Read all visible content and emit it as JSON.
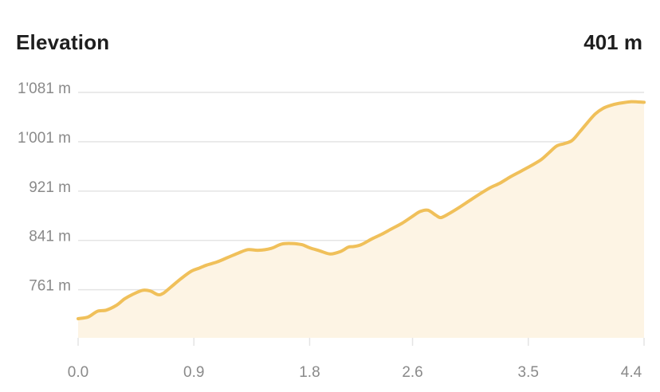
{
  "header": {
    "title": "Elevation",
    "total": "401 m"
  },
  "colors": {
    "line": "#f0c05a",
    "fill": "#fdf4e4",
    "grid": "#e4e4e4",
    "tick_text": "#8a8a8a"
  },
  "chart_data": {
    "type": "area",
    "xlim": [
      0,
      4.4
    ],
    "ylim": [
      683,
      1081
    ],
    "x_ticks": [
      {
        "value": 0.0,
        "label": "0.0"
      },
      {
        "value": 0.9,
        "label": "0.9"
      },
      {
        "value": 1.8,
        "label": "1.8"
      },
      {
        "value": 2.6,
        "label": "2.6"
      },
      {
        "value": 3.5,
        "label": "3.5"
      },
      {
        "value": 4.4,
        "label": "4.4"
      }
    ],
    "y_ticks": [
      {
        "value": 761,
        "label": "761 m"
      },
      {
        "value": 841,
        "label": "841 m"
      },
      {
        "value": 921,
        "label": "921 m"
      },
      {
        "value": 1001,
        "label": "1'001 m"
      },
      {
        "value": 1081,
        "label": "1'081 m"
      }
    ],
    "series": [
      {
        "x": [
          0.0,
          0.08,
          0.15,
          0.22,
          0.3,
          0.36,
          0.42,
          0.5,
          0.56,
          0.62,
          0.66,
          0.72,
          0.8,
          0.88,
          0.94,
          1.0,
          1.08,
          1.16,
          1.24,
          1.32,
          1.4,
          1.5,
          1.58,
          1.66,
          1.74,
          1.8,
          1.88,
          1.96,
          2.04,
          2.1,
          2.14,
          2.2,
          2.28,
          2.36,
          2.44,
          2.52,
          2.6,
          2.66,
          2.72,
          2.78,
          2.82,
          2.88,
          2.96,
          3.04,
          3.12,
          3.2,
          3.28,
          3.36,
          3.44,
          3.52,
          3.6,
          3.66,
          3.72,
          3.78,
          3.84,
          3.9,
          3.96,
          4.02,
          4.08,
          4.14,
          4.2,
          4.3,
          4.4
        ],
        "y": [
          714,
          717,
          726,
          728,
          736,
          746,
          753,
          760,
          759,
          753,
          755,
          765,
          779,
          791,
          796,
          801,
          806,
          813,
          820,
          826,
          825,
          828,
          835,
          836,
          834,
          829,
          824,
          819,
          823,
          830,
          831,
          834,
          843,
          851,
          860,
          869,
          880,
          888,
          890,
          882,
          878,
          884,
          894,
          905,
          916,
          926,
          934,
          944,
          953,
          962,
          972,
          983,
          994,
          998,
          1003,
          1017,
          1032,
          1046,
          1055,
          1060,
          1063,
          1066,
          1065
        ]
      }
    ]
  }
}
